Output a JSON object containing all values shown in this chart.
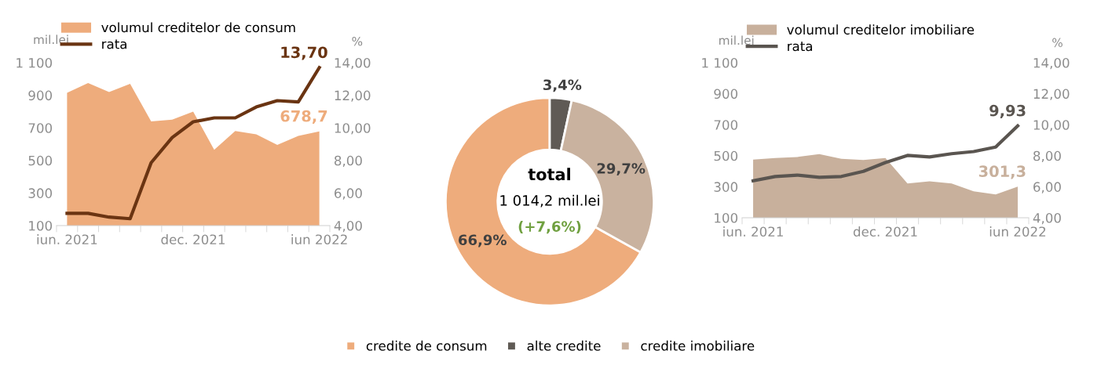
{
  "chart_data": [
    {
      "type": "area",
      "ylabel": "mil.lei",
      "y2label": "%",
      "legend": "top left",
      "grid": false,
      "categories": [
        "iun. 2021",
        null,
        null,
        null,
        null,
        null,
        "dec. 2021",
        null,
        null,
        null,
        null,
        null,
        "iun 2022"
      ],
      "ylim": [
        100,
        1100
      ],
      "yticks": [
        100,
        300,
        500,
        700,
        900,
        {
          "value": 1100,
          "label": "1 100"
        }
      ],
      "y2lim": [
        4,
        14
      ],
      "y2ticks": [
        {
          "value": 4,
          "label": "4,00"
        },
        {
          "value": 6,
          "label": "6,00"
        },
        {
          "value": 8,
          "label": "8,00"
        },
        {
          "value": 10,
          "label": "10,00"
        },
        {
          "value": 12,
          "label": "12,00"
        },
        {
          "value": 14,
          "label": "14,00"
        }
      ],
      "series": [
        {
          "name": "volumul creditelor de consum",
          "type": "area",
          "color": "#eeac7c",
          "values": [
            915,
            975,
            920,
            970,
            740,
            750,
            800,
            565,
            680,
            660,
            595,
            650,
            678.7
          ],
          "value_labels": [
            null,
            null,
            null,
            null,
            null,
            null,
            null,
            null,
            null,
            null,
            null,
            null,
            "678,7"
          ]
        },
        {
          "name": "rata",
          "type": "line",
          "axis": "y2",
          "color": "#6a3412",
          "values": [
            4.75,
            4.75,
            4.52,
            4.42,
            7.86,
            9.4,
            10.37,
            10.61,
            10.61,
            11.28,
            11.67,
            11.59,
            13.7
          ],
          "value_labels": [
            null,
            null,
            null,
            null,
            null,
            null,
            null,
            null,
            null,
            null,
            null,
            null,
            "13,70"
          ]
        }
      ]
    },
    {
      "type": "donut",
      "legend": "bottom",
      "categories": [
        "credite de consum",
        "alte credite",
        "credite imobiliare"
      ],
      "values": [
        66.9,
        3.4,
        29.7
      ],
      "colors": [
        "#eeac7c",
        "#5f5a55",
        "#c9b29f"
      ],
      "value_labels": [
        "66,9%",
        "3,4%",
        "29,7%"
      ],
      "annotations": [
        "total",
        "1 014,2 mil.lei",
        "(+7,6%)"
      ]
    },
    {
      "type": "area",
      "ylabel": "mil.lei",
      "y2label": "%",
      "legend": "top left",
      "grid": false,
      "categories": [
        "iun. 2021",
        null,
        null,
        null,
        null,
        null,
        "dec. 2021",
        null,
        null,
        null,
        null,
        null,
        "iun 2022"
      ],
      "ylim": [
        100,
        1100
      ],
      "yticks": [
        100,
        300,
        500,
        700,
        900,
        {
          "value": 1100,
          "label": "1 100"
        }
      ],
      "y2lim": [
        4,
        14
      ],
      "y2ticks": [
        {
          "value": 4,
          "label": "4,00"
        },
        {
          "value": 6,
          "label": "6,00"
        },
        {
          "value": 8,
          "label": "8,00"
        },
        {
          "value": 10,
          "label": "10,00"
        },
        {
          "value": 12,
          "label": "12,00"
        },
        {
          "value": 14,
          "label": "14,00"
        }
      ],
      "series": [
        {
          "name": "volumul creditelor imobiliare",
          "type": "area",
          "color": "#c8b09c",
          "values": [
            475,
            485,
            492,
            510,
            480,
            473,
            485,
            321,
            335,
            321,
            271,
            250,
            301.3
          ],
          "value_labels": [
            null,
            null,
            null,
            null,
            null,
            null,
            null,
            null,
            null,
            null,
            null,
            null,
            "301,3"
          ]
        },
        {
          "name": "rata",
          "type": "line",
          "axis": "y2",
          "color": "#5a5550",
          "values": [
            6.38,
            6.66,
            6.75,
            6.61,
            6.66,
            6.99,
            7.56,
            8.02,
            7.92,
            8.13,
            8.27,
            8.56,
            9.93
          ],
          "value_labels": [
            null,
            null,
            null,
            null,
            null,
            null,
            null,
            null,
            null,
            null,
            null,
            null,
            "9,93"
          ]
        }
      ]
    }
  ]
}
